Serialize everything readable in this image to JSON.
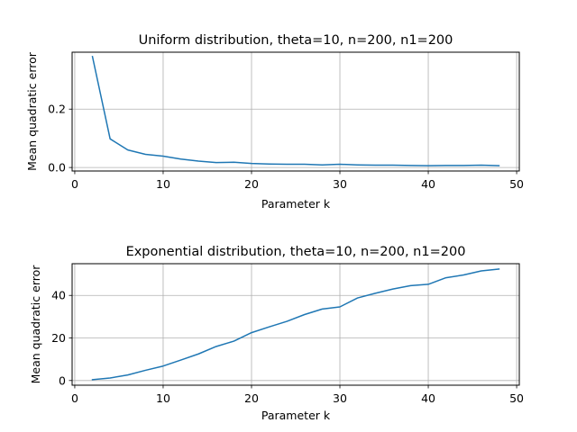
{
  "chart_data": [
    {
      "type": "line",
      "title": "Uniform distribution, theta=10, n=200, n1=200",
      "xlabel": "Parameter k",
      "ylabel": "Mean quadratic error",
      "xlim": [
        -0.3,
        50.3
      ],
      "ylim": [
        -0.012,
        0.395
      ],
      "xticks": [
        0,
        10,
        20,
        30,
        40,
        50
      ],
      "xtick_labels": [
        "0",
        "10",
        "20",
        "30",
        "40",
        "50"
      ],
      "yticks": [
        0.0,
        0.2
      ],
      "ytick_labels": [
        "0.0",
        "0.2"
      ],
      "grid": true,
      "series": [
        {
          "color": "#1f77b4",
          "x": [
            2,
            4,
            6,
            8,
            10,
            12,
            14,
            16,
            18,
            20,
            22,
            24,
            26,
            28,
            30,
            32,
            34,
            36,
            38,
            40,
            42,
            44,
            46,
            48
          ],
          "y": [
            0.38,
            0.098,
            0.06,
            0.045,
            0.039,
            0.029,
            0.022,
            0.017,
            0.018,
            0.014,
            0.012,
            0.011,
            0.011,
            0.009,
            0.011,
            0.009,
            0.008,
            0.008,
            0.007,
            0.006,
            0.007,
            0.007,
            0.008,
            0.006
          ]
        }
      ]
    },
    {
      "type": "line",
      "title": "Exponential distribution, theta=10, n=200, n1=200",
      "xlabel": "Parameter k",
      "ylabel": "Mean quadratic error",
      "xlim": [
        -0.3,
        50.3
      ],
      "ylim": [
        -2.2,
        54.9
      ],
      "xticks": [
        0,
        10,
        20,
        30,
        40,
        50
      ],
      "xtick_labels": [
        "0",
        "10",
        "20",
        "30",
        "40",
        "50"
      ],
      "yticks": [
        0,
        20,
        40
      ],
      "ytick_labels": [
        "0",
        "20",
        "40"
      ],
      "grid": true,
      "series": [
        {
          "color": "#1f77b4",
          "x": [
            2,
            4,
            6,
            8,
            10,
            12,
            14,
            16,
            18,
            20,
            22,
            24,
            26,
            28,
            30,
            32,
            34,
            36,
            38,
            40,
            42,
            44,
            46,
            48
          ],
          "y": [
            0.4,
            1.2,
            2.6,
            4.8,
            6.8,
            9.6,
            12.5,
            16.0,
            18.5,
            22.5,
            25.2,
            27.8,
            31.0,
            33.6,
            34.6,
            38.8,
            41.0,
            43.0,
            44.6,
            45.2,
            48.3,
            49.6,
            51.5,
            52.4
          ]
        }
      ]
    }
  ]
}
